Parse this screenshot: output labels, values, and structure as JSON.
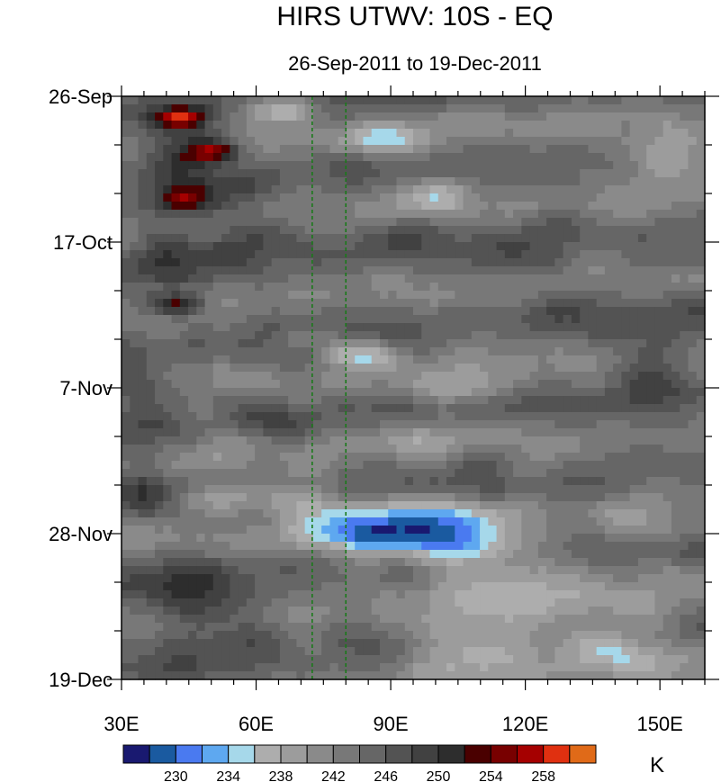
{
  "chart_data": {
    "type": "heatmap",
    "title": "HIRS UTWV: 10S - EQ",
    "subtitle": "26-Sep-2011 to 19-Dec-2011",
    "x_axis": {
      "range": [
        30,
        160
      ],
      "ticks": [
        30,
        60,
        90,
        120,
        150
      ],
      "tick_labels": [
        "30E",
        "60E",
        "90E",
        "120E",
        "150E"
      ]
    },
    "y_axis": {
      "range_days": [
        0,
        84
      ],
      "ticks_days": [
        0,
        21,
        42,
        63,
        84
      ],
      "tick_labels": [
        "26-Sep",
        "17-Oct",
        "7-Nov",
        "28-Nov",
        "19-Dec"
      ]
    },
    "reference_lines_lon": [
      72.5,
      80
    ],
    "colorbar": {
      "levels": [
        228,
        230,
        232,
        234,
        236,
        238,
        240,
        242,
        244,
        246,
        248,
        250,
        252,
        254,
        256,
        258,
        260
      ],
      "labels": [
        "230",
        "234",
        "238",
        "242",
        "246",
        "250",
        "254",
        "258"
      ],
      "label_values": [
        230,
        234,
        238,
        242,
        246,
        250,
        254,
        258
      ],
      "colors": [
        "#191970",
        "#1a5aa0",
        "#4a7af0",
        "#5ea8f0",
        "#a6d8ea",
        "#adadad",
        "#9c9c9c",
        "#8a8a8a",
        "#787878",
        "#666666",
        "#535353",
        "#414141",
        "#2d2d2d",
        "#4a0000",
        "#780000",
        "#a50000",
        "#e03010",
        "#e06a18"
      ],
      "unit": "K"
    },
    "anomaly_blobs": [
      {
        "lon": 43,
        "day": 3,
        "rlon": 6,
        "rday": 1.5,
        "v": 11
      },
      {
        "lon": 51,
        "day": 8,
        "rlon": 6,
        "rday": 1.5,
        "v": 10
      },
      {
        "lon": 44,
        "day": 15,
        "rlon": 6,
        "rday": 2,
        "v": 9
      },
      {
        "lon": 42,
        "day": 30,
        "rlon": 6,
        "rday": 1.5,
        "v": 10
      },
      {
        "lon": 40,
        "day": 22,
        "rlon": 6,
        "rday": 4,
        "v": 5
      },
      {
        "lon": 44,
        "day": 10,
        "rlon": 12,
        "rday": 8,
        "v": 5
      },
      {
        "lon": 35,
        "day": 42,
        "rlon": 10,
        "rday": 3,
        "v": 5
      },
      {
        "lon": 46,
        "day": 72,
        "rlon": 12,
        "rday": 5,
        "v": 5
      },
      {
        "lon": 60,
        "day": 20,
        "rlon": 10,
        "rday": 4,
        "v": 4
      },
      {
        "lon": 35,
        "day": 56,
        "rlon": 5,
        "rday": 6,
        "v": 3
      },
      {
        "lon": 90,
        "day": 20,
        "rlon": 15,
        "rday": 3,
        "v": 3
      },
      {
        "lon": 128,
        "day": 30,
        "rlon": 8,
        "rday": 4,
        "v": 4
      },
      {
        "lon": 150,
        "day": 40,
        "rlon": 10,
        "rday": 6,
        "v": 4
      },
      {
        "lon": 112,
        "day": 55,
        "rlon": 10,
        "rday": 5,
        "v": 4
      },
      {
        "lon": 66,
        "day": 2,
        "rlon": 8,
        "rday": 2,
        "v": -9
      },
      {
        "lon": 86,
        "day": 6,
        "rlon": 10,
        "rday": 2,
        "v": -6
      },
      {
        "lon": 150,
        "day": 9,
        "rlon": 10,
        "rday": 4,
        "v": -6
      },
      {
        "lon": 100,
        "day": 14,
        "rlon": 10,
        "rday": 2.5,
        "v": -6
      },
      {
        "lon": 83,
        "day": 37,
        "rlon": 8,
        "rday": 2,
        "v": -7
      },
      {
        "lon": 71,
        "day": 35,
        "rlon": 6,
        "rday": 1.5,
        "v": -4
      },
      {
        "lon": 105,
        "day": 42,
        "rlon": 10,
        "rday": 2.5,
        "v": -6
      },
      {
        "lon": 100,
        "day": 49,
        "rlon": 8,
        "rday": 3,
        "v": -4
      },
      {
        "lon": 120,
        "day": 54,
        "rlon": 8,
        "rday": 3,
        "v": -4
      },
      {
        "lon": 50,
        "day": 58,
        "rlon": 12,
        "rday": 2,
        "v": -5
      },
      {
        "lon": 70,
        "day": 58,
        "rlon": 10,
        "rday": 3,
        "v": -6
      },
      {
        "lon": 85,
        "day": 63,
        "rlon": 15,
        "rday": 3,
        "v": -9
      },
      {
        "lon": 104,
        "day": 64,
        "rlon": 12,
        "rday": 4,
        "v": -10
      },
      {
        "lon": 120,
        "day": 72,
        "rlon": 25,
        "rday": 6,
        "v": -6
      },
      {
        "lon": 110,
        "day": 80,
        "rlon": 15,
        "rday": 4,
        "v": -7
      },
      {
        "lon": 140,
        "day": 80,
        "rlon": 15,
        "rday": 4,
        "v": -6
      },
      {
        "lon": 95,
        "day": 60,
        "rlon": 25,
        "rday": 3,
        "v": -4
      }
    ]
  }
}
